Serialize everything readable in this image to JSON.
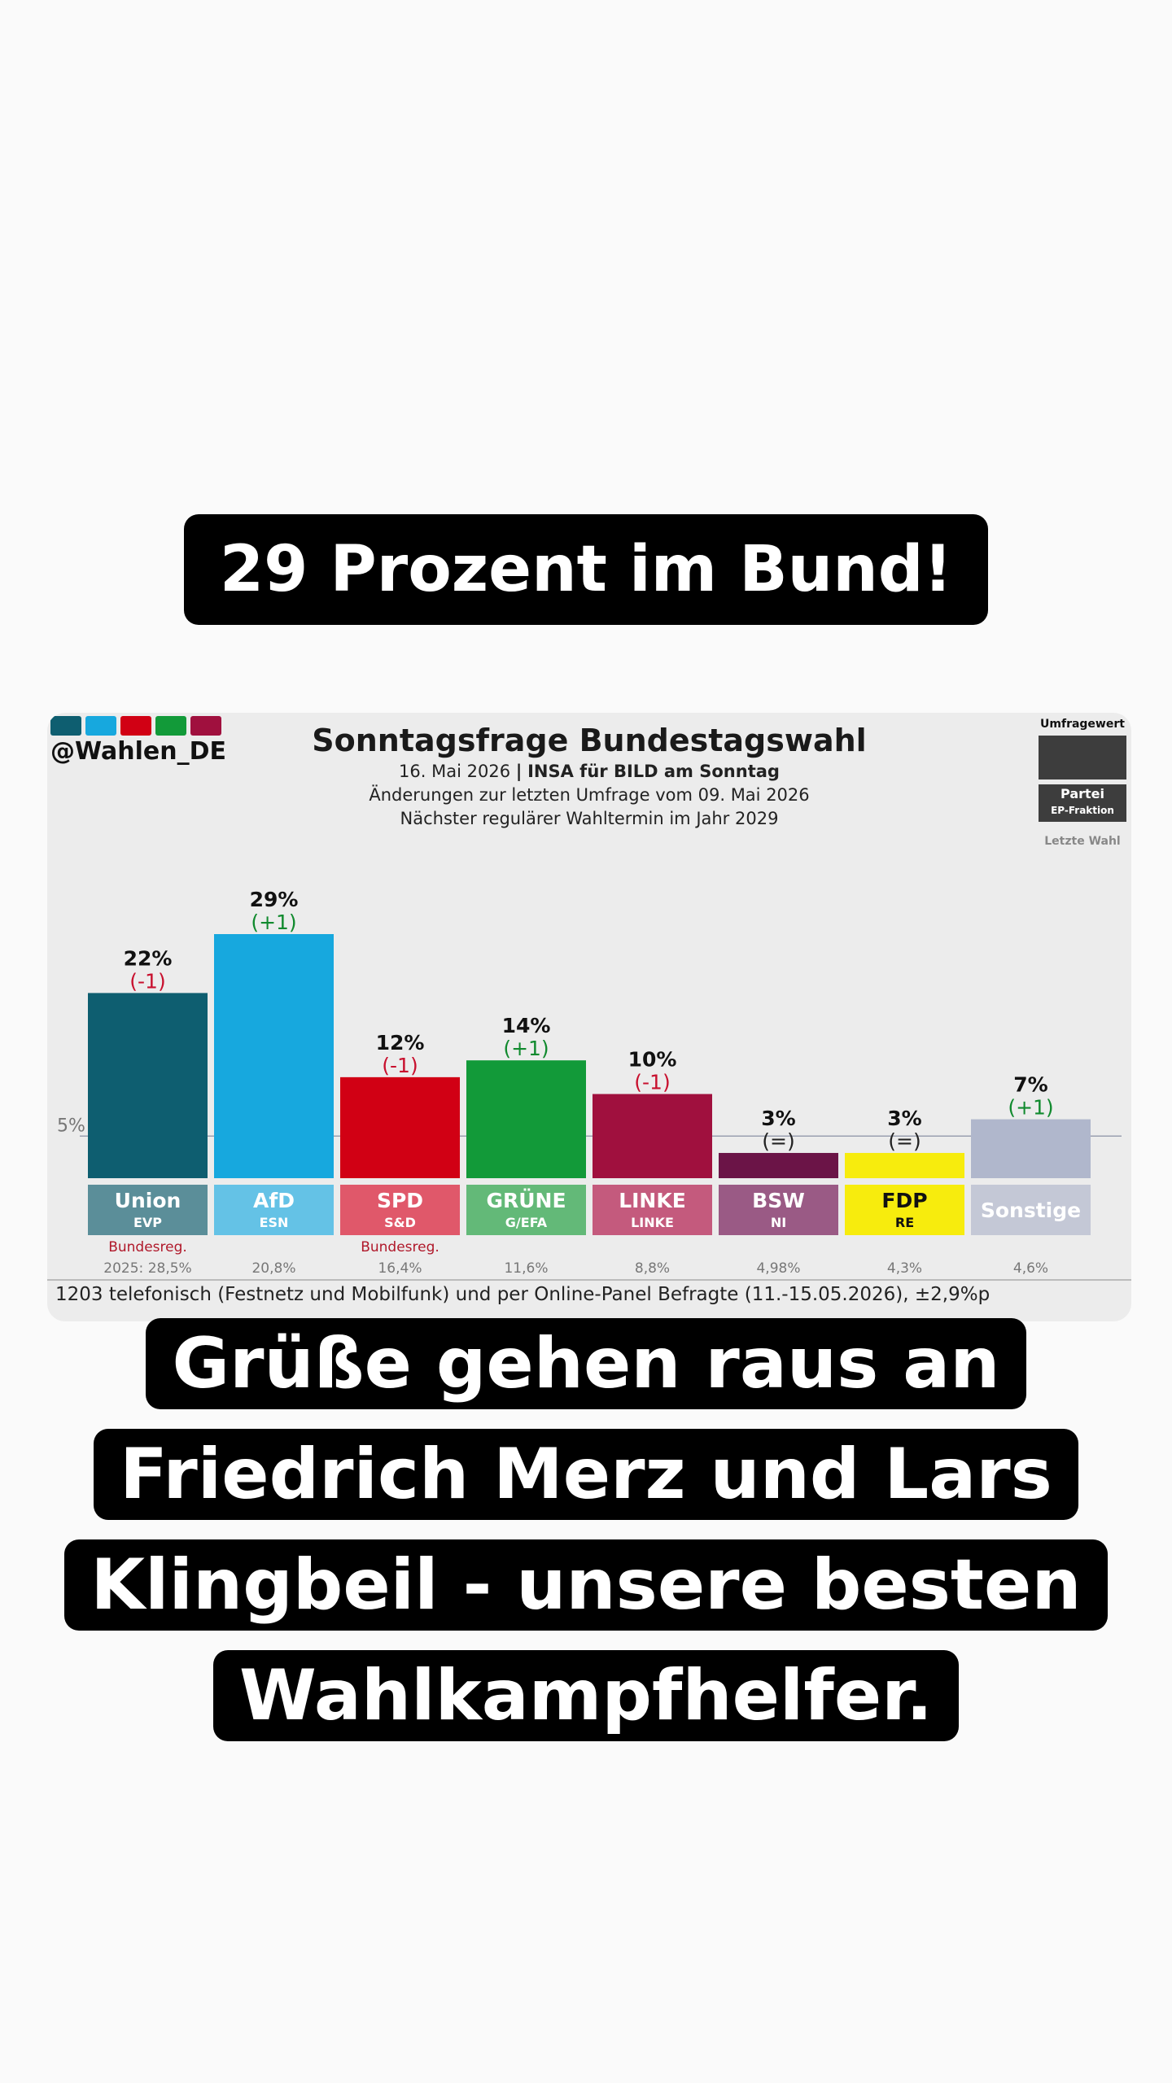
{
  "captions": {
    "top": "29 Prozent im Bund!",
    "bottom": [
      "Grüße gehen raus an",
      "Friedrich Merz und Lars",
      "Klingbeil - unsere besten",
      "Wahlkampfhelfer."
    ]
  },
  "header": {
    "handle": "@Wahlen_DE",
    "stripe_colors": [
      "#0e5e70",
      "#17a8de",
      "#d10014",
      "#129a39",
      "#a0103e"
    ],
    "subtitle_date": "16. Mai 2026",
    "subtitle_separator": "|",
    "subtitle_source": "INSA für BILD am Sonntag",
    "line2": "Änderungen zur letzten Umfrage vom 09. Mai 2026",
    "line3": "Nächster regulärer Wahltermin im Jahr 2029"
  },
  "legend": {
    "value_label": "Umfragewert",
    "party_label": "Partei",
    "fraction_label": "EP-Fraktion",
    "last_label": "Letzte Wahl"
  },
  "chart_data": {
    "type": "bar",
    "title": "Sonntagsfrage Bundestagswahl",
    "categories": [
      "Union",
      "AfD",
      "SPD",
      "GRÜNE",
      "LINKE",
      "BSW",
      "FDP",
      "Sonstige"
    ],
    "fractions": [
      "EVP",
      "ESN",
      "S&D",
      "G/EFA",
      "LINKE",
      "NI",
      "RE",
      ""
    ],
    "values": [
      22,
      29,
      12,
      14,
      10,
      3,
      3,
      7
    ],
    "value_labels": [
      "22%",
      "29%",
      "12%",
      "14%",
      "10%",
      "3%",
      "3%",
      "7%"
    ],
    "changes": [
      "(-1)",
      "(+1)",
      "(-1)",
      "(+1)",
      "(-1)",
      "(=)",
      "(=)",
      "(+1)"
    ],
    "change_direction": [
      "down",
      "up",
      "down",
      "up",
      "down",
      "same",
      "same",
      "up"
    ],
    "bar_colors": [
      "#0e5e70",
      "#17a8de",
      "#d10014",
      "#129a39",
      "#a0103e",
      "#6b1447",
      "#f7ec0d",
      "#b0b7cc"
    ],
    "label_colors": [
      "#5b8e99",
      "#64c2e6",
      "#e0586a",
      "#63b978",
      "#c45a7d",
      "#9a5a85",
      "#f7ec0d",
      "#c4c8d6"
    ],
    "last_election": [
      "2025: 28,5%",
      "20,8%",
      "16,4%",
      "11,6%",
      "8,8%",
      "4,98%",
      "4,3%",
      "4,6%"
    ],
    "government_note": [
      "Bundesreg.",
      "",
      "Bundesreg.",
      "",
      "",
      "",
      "",
      ""
    ],
    "threshold": 5,
    "threshold_label": "5%",
    "ylim": [
      0,
      29
    ]
  },
  "footnote": "1203 telefonisch (Festnetz und Mobilfunk) und per Online-Panel Befragte (11.-15.05.2026), ±2,9%p"
}
